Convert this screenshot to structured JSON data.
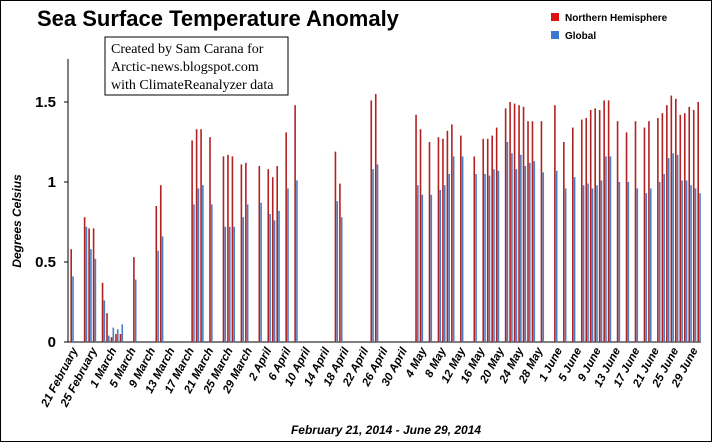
{
  "chart_data": {
    "type": "bar",
    "title": "Sea Surface Temperature Anomaly",
    "credit": [
      "Created by Sam Carana for",
      "Arctic-news.blogspot.com",
      "with ClimateReanalyzer data"
    ],
    "ylabel": "Degrees Celsius",
    "xlabel": "February 21, 2014 - June 29, 2014",
    "ylim": [
      0,
      1.7
    ],
    "yticks": [
      "0",
      "0.5",
      "1",
      "1.5"
    ],
    "grid": false,
    "legend_position": "top-right",
    "x_tick_labels": [
      "21 February",
      "25 February",
      "1 March",
      "5 March",
      "9 March",
      "13 March",
      "17 March",
      "21 March",
      "25 March",
      "29 March",
      "2 April",
      "6 April",
      "10 April",
      "14 April",
      "18 April",
      "22 April",
      "26 April",
      "30 April",
      "4 May",
      "8 May",
      "12 May",
      "16 May",
      "20 May",
      "24 May",
      "28 May",
      "1 June",
      "5 June",
      "9 June",
      "13 June",
      "17 June",
      "21 June",
      "25 June",
      "29 June"
    ],
    "series": [
      {
        "name": "Northern Hemisphere",
        "color": "#b22222",
        "values": [
          0.58,
          null,
          null,
          0.78,
          0.71,
          0.71,
          null,
          0.37,
          0.18,
          0.03,
          0.05,
          0.05,
          null,
          null,
          0.53,
          null,
          null,
          null,
          null,
          0.85,
          0.98,
          null,
          null,
          null,
          null,
          null,
          null,
          1.26,
          1.33,
          1.33,
          null,
          1.28,
          null,
          null,
          1.16,
          1.17,
          1.16,
          null,
          1.11,
          1.12,
          null,
          null,
          1.1,
          null,
          1.08,
          1.03,
          1.1,
          null,
          1.31,
          null,
          1.48,
          null,
          null,
          null,
          null,
          null,
          null,
          null,
          null,
          1.19,
          0.99,
          null,
          null,
          null,
          null,
          null,
          null,
          1.51,
          1.55,
          null,
          null,
          null,
          null,
          null,
          null,
          null,
          null,
          1.42,
          1.33,
          null,
          1.25,
          null,
          1.28,
          1.27,
          1.32,
          1.36,
          null,
          1.29,
          null,
          null,
          1.16,
          null,
          1.27,
          1.27,
          1.29,
          1.34,
          null,
          1.46,
          1.5,
          1.49,
          1.48,
          1.47,
          1.38,
          1.38,
          null,
          1.38,
          null,
          null,
          1.48,
          null,
          1.25,
          null,
          1.34,
          null,
          1.39,
          1.4,
          1.45,
          1.46,
          1.45,
          1.51,
          1.51,
          null,
          1.38,
          null,
          1.31,
          null,
          1.38,
          null,
          1.34,
          1.38,
          null,
          1.4,
          1.43,
          1.48,
          1.54,
          1.52,
          1.42,
          1.43,
          1.47,
          1.45,
          1.5
        ],
        "mark_every": 1
      },
      {
        "name": "Global",
        "color": "#4a7fc1",
        "values": [
          0.41,
          null,
          null,
          0.72,
          0.58,
          0.52,
          null,
          0.26,
          0.04,
          0.09,
          0.08,
          0.11,
          null,
          null,
          0.39,
          null,
          null,
          null,
          null,
          0.57,
          0.66,
          null,
          null,
          null,
          null,
          null,
          null,
          0.86,
          0.96,
          0.98,
          null,
          0.86,
          null,
          null,
          0.72,
          0.72,
          0.72,
          null,
          0.78,
          0.86,
          null,
          null,
          0.87,
          null,
          0.8,
          0.76,
          0.82,
          null,
          0.96,
          null,
          1.01,
          null,
          null,
          null,
          null,
          null,
          null,
          null,
          null,
          0.88,
          0.78,
          null,
          null,
          null,
          null,
          null,
          null,
          1.08,
          1.11,
          null,
          null,
          null,
          null,
          null,
          null,
          null,
          null,
          0.98,
          0.92,
          null,
          0.92,
          null,
          0.95,
          0.98,
          1.05,
          1.16,
          null,
          1.16,
          null,
          null,
          1.05,
          null,
          1.05,
          1.04,
          1.08,
          1.07,
          null,
          1.25,
          1.18,
          1.08,
          1.17,
          1.1,
          1.12,
          1.13,
          null,
          1.06,
          null,
          null,
          1.07,
          null,
          0.96,
          null,
          1.03,
          null,
          0.98,
          0.99,
          0.96,
          0.98,
          1.01,
          1.16,
          1.16,
          null,
          1.0,
          null,
          1.0,
          null,
          0.96,
          null,
          0.93,
          0.96,
          null,
          1.0,
          1.05,
          1.15,
          1.18,
          1.17,
          1.01,
          1.01,
          0.98,
          0.96,
          0.93
        ]
      }
    ]
  },
  "legend": {
    "items": [
      {
        "label": "Northern Hemisphere",
        "color": "#e01010"
      },
      {
        "label": "Global",
        "color": "#3a78d0"
      }
    ]
  }
}
